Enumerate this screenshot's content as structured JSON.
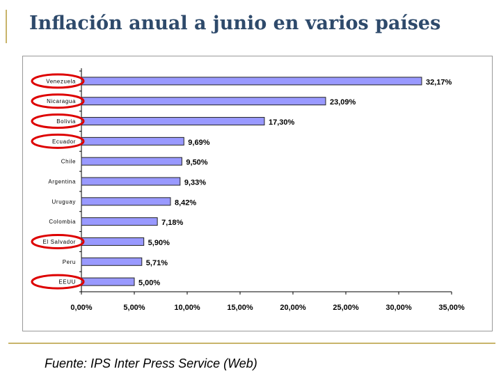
{
  "slide": {
    "title": "Inflación anual a junio en varios países",
    "source": "Fuente: IPS Inter Press Service (Web)"
  },
  "colors": {
    "bar_fill": "#9999ff",
    "bar_stroke": "#222222",
    "title": "#2e4a6b",
    "accent_rule": "#c8b46a",
    "highlight_ellipse": "#dd0000"
  },
  "chart_data": {
    "type": "bar",
    "orientation": "horizontal",
    "categories": [
      "Venezuela",
      "Nicaragua",
      "Bolivia",
      "Ecuador",
      "Chile",
      "Argentina",
      "Uruguay",
      "Colombia",
      "El Salvador",
      "Peru",
      "EEUU"
    ],
    "values": [
      32.17,
      23.09,
      17.3,
      9.69,
      9.5,
      9.33,
      8.42,
      7.18,
      5.9,
      5.71,
      5.0
    ],
    "data_labels": [
      "32,17%",
      "23,09%",
      "17,30%",
      "9,69%",
      "9,50%",
      "9,33%",
      "8,42%",
      "7,18%",
      "5,90%",
      "5,71%",
      "5,00%"
    ],
    "xlim": [
      0,
      35
    ],
    "x_ticks": [
      0,
      5,
      10,
      15,
      20,
      25,
      30,
      35
    ],
    "x_tick_labels": [
      "0,00%",
      "5,00%",
      "10,00%",
      "15,00%",
      "20,00%",
      "25,00%",
      "30,00%",
      "35,00%"
    ],
    "highlighted": [
      "Venezuela",
      "Nicaragua",
      "Bolivia",
      "Ecuador",
      "El Salvador",
      "EEUU"
    ],
    "grid": false,
    "legend": "none"
  }
}
